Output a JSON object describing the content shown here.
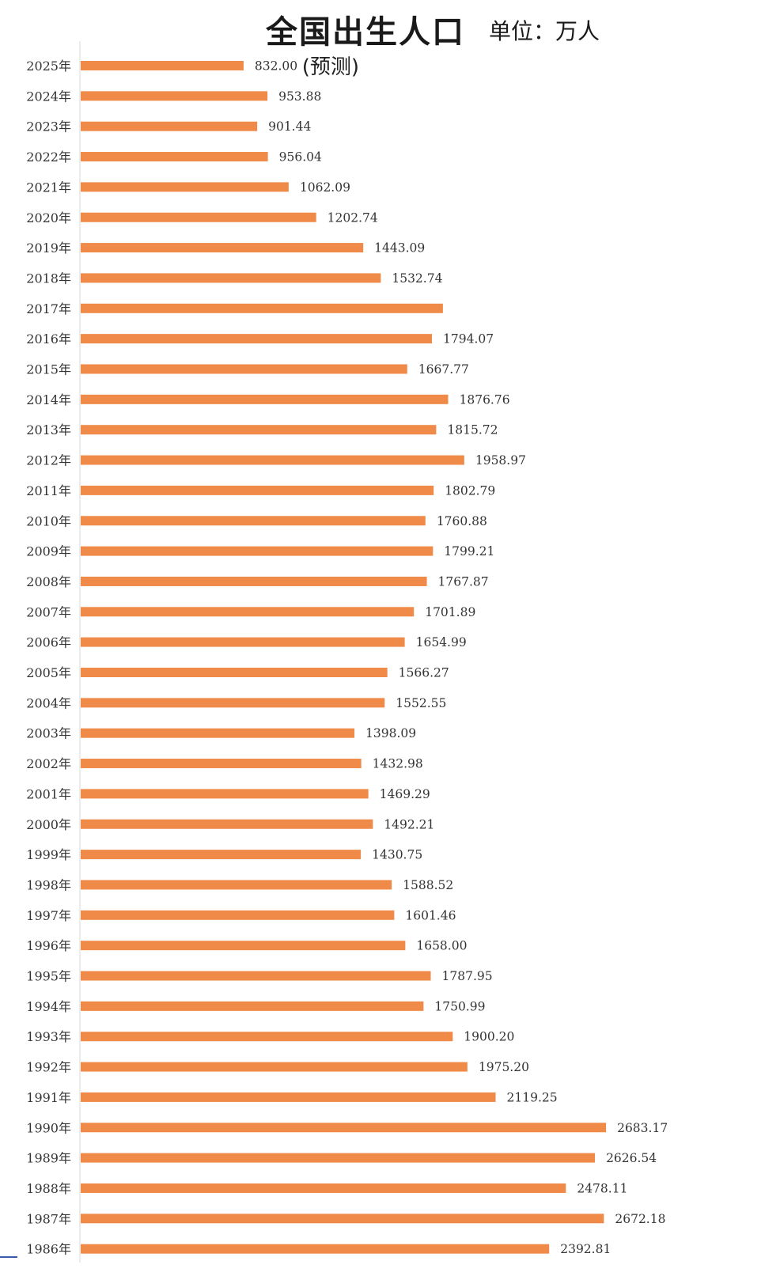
{
  "chart_data": {
    "type": "bar",
    "orientation": "horizontal",
    "title": "全国出生人口",
    "unit": "单位：万人",
    "bar_color": "#ef8a48",
    "categories": [
      "2025年",
      "2024年",
      "2023年",
      "2022年",
      "2021年",
      "2020年",
      "2019年",
      "2018年",
      "2017年",
      "2016年",
      "2015年",
      "2014年",
      "2013年",
      "2012年",
      "2011年",
      "2010年",
      "2009年",
      "2008年",
      "2007年",
      "2006年",
      "2005年",
      "2004年",
      "2003年",
      "2002年",
      "2001年",
      "2000年",
      "1999年",
      "1998年",
      "1997年",
      "1996年",
      "1995年",
      "1994年",
      "1993年",
      "1992年",
      "1991年",
      "1990年",
      "1989年",
      "1988年",
      "1987年",
      "1986年"
    ],
    "values": [
      832.0,
      953.88,
      901.44,
      956.04,
      1062.09,
      1202.74,
      1443.09,
      1532.74,
      1850,
      1794.07,
      1667.77,
      1876.76,
      1815.72,
      1958.97,
      1802.79,
      1760.88,
      1799.21,
      1767.87,
      1701.89,
      1654.99,
      1566.27,
      1552.55,
      1398.09,
      1432.98,
      1469.29,
      1492.21,
      1430.75,
      1588.52,
      1601.46,
      1658.0,
      1787.95,
      1750.99,
      1900.2,
      1975.2,
      2119.25,
      2683.17,
      2626.54,
      2478.11,
      2672.18,
      2392.81
    ],
    "value_labels": [
      "832.00",
      "953.88",
      "901.44",
      "956.04",
      "1062.09",
      "1202.74",
      "1443.09",
      "1532.74",
      "",
      "1794.07",
      "1667.77",
      "1876.76",
      "1815.72",
      "1958.97",
      "1802.79",
      "1760.88",
      "1799.21",
      "1767.87",
      "1701.89",
      "1654.99",
      "1566.27",
      "1552.55",
      "1398.09",
      "1432.98",
      "1469.29",
      "1492.21",
      "1430.75",
      "1588.52",
      "1601.46",
      "1658.00",
      "1787.95",
      "1750.99",
      "1900.20",
      "1975.20",
      "2119.25",
      "2683.17",
      "2626.54",
      "2478.11",
      "2672.18",
      "2392.81"
    ],
    "annotations": [
      {
        "category": "2025年",
        "text": "(预测)"
      }
    ],
    "xlim": [
      0,
      2700
    ],
    "grid": false,
    "legend": "none"
  }
}
